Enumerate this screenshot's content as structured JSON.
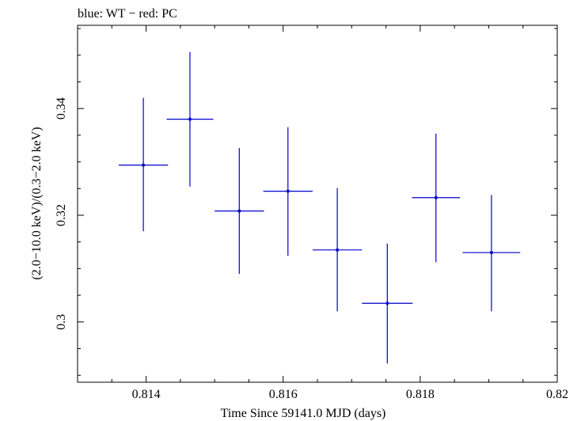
{
  "chart_data": {
    "type": "scatter",
    "title": "blue: WT − red: PC",
    "xlabel": "Time Since 59141.0 MJD (days)",
    "ylabel": "(2.0−10.0 keV)/(0.3−2.0 keV)",
    "xlim": [
      0.813,
      0.82
    ],
    "ylim": [
      0.2887,
      0.3556
    ],
    "x_ticks": [
      {
        "value": 0.814,
        "label": "0.814"
      },
      {
        "value": 0.816,
        "label": "0.816"
      },
      {
        "value": 0.818,
        "label": "0.818"
      },
      {
        "value": 0.82,
        "label": "0.82"
      }
    ],
    "y_ticks": [
      {
        "value": 0.3,
        "label": "0.3"
      },
      {
        "value": 0.32,
        "label": "0.32"
      },
      {
        "value": 0.34,
        "label": "0.34"
      }
    ],
    "series": [
      {
        "name": "WT",
        "color": "#0000cc",
        "points": [
          {
            "x": 0.81396,
            "xerr": 0.00036,
            "y": 0.3294,
            "yerr_low": 0.0124,
            "yerr_high": 0.0126
          },
          {
            "x": 0.81464,
            "xerr": 0.00034,
            "y": 0.338,
            "yerr_low": 0.0126,
            "yerr_high": 0.0126
          },
          {
            "x": 0.81536,
            "xerr": 0.00036,
            "y": 0.3208,
            "yerr_low": 0.0118,
            "yerr_high": 0.0118
          },
          {
            "x": 0.81607,
            "xerr": 0.00036,
            "y": 0.3245,
            "yerr_low": 0.0121,
            "yerr_high": 0.012
          },
          {
            "x": 0.81679,
            "xerr": 0.00036,
            "y": 0.3135,
            "yerr_low": 0.0115,
            "yerr_high": 0.0116
          },
          {
            "x": 0.81752,
            "xerr": 0.00037,
            "y": 0.3035,
            "yerr_low": 0.0113,
            "yerr_high": 0.0112
          },
          {
            "x": 0.81823,
            "xerr": 0.00035,
            "y": 0.3233,
            "yerr_low": 0.0121,
            "yerr_high": 0.012
          },
          {
            "x": 0.81904,
            "xerr": 0.00042,
            "y": 0.313,
            "yerr_low": 0.011,
            "yerr_high": 0.0108
          }
        ]
      }
    ]
  }
}
